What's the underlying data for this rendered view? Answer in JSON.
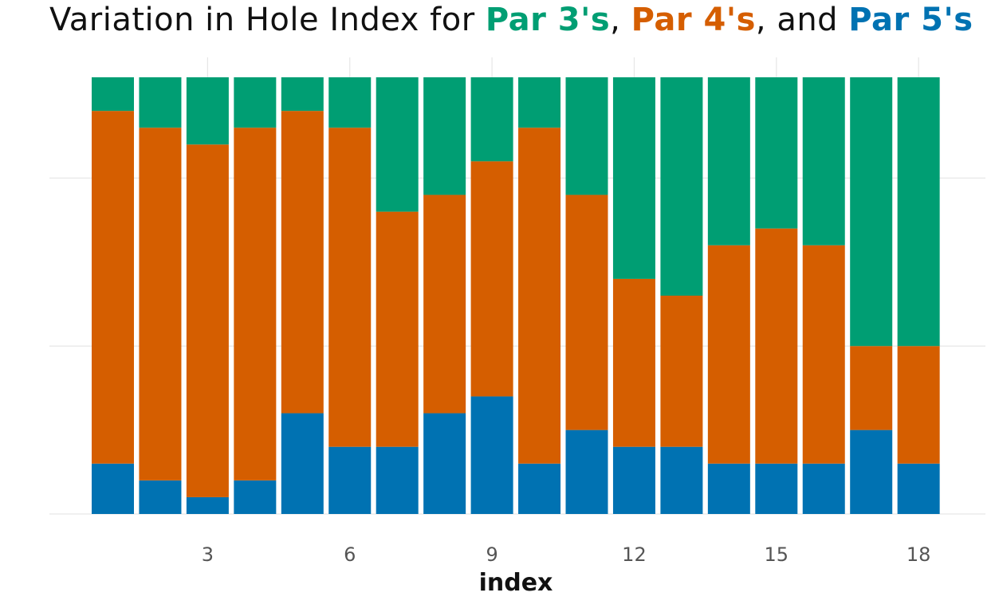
{
  "chart_data": {
    "type": "bar",
    "stacked": true,
    "title": {
      "prefix": "Variation in Hole Index for ",
      "par3": "Par 3's",
      "sep1": ", ",
      "par4": "Par 4's",
      "sep2": ", and ",
      "par5": "Par 5's"
    },
    "xlabel": "index",
    "ylabel": "",
    "ylim": [
      0,
      26
    ],
    "grid": true,
    "legend": "none",
    "x_ticks": [
      3,
      6,
      9,
      12,
      15,
      18
    ],
    "categories": [
      1,
      2,
      3,
      4,
      5,
      6,
      7,
      8,
      9,
      10,
      11,
      12,
      13,
      14,
      15,
      16,
      17,
      18
    ],
    "series": [
      {
        "key": "par5",
        "color": "#0072B2",
        "values": [
          3,
          2,
          1,
          2,
          6,
          4,
          4,
          6,
          7,
          3,
          5,
          4,
          4,
          3,
          3,
          3,
          5,
          3
        ]
      },
      {
        "key": "par4",
        "color": "#D55E00",
        "values": [
          21,
          21,
          21,
          21,
          18,
          19,
          14,
          13,
          14,
          20,
          14,
          10,
          9,
          13,
          14,
          13,
          5,
          7
        ]
      },
      {
        "key": "par3",
        "color": "#009E73",
        "values": [
          2,
          3,
          4,
          3,
          2,
          3,
          8,
          7,
          5,
          3,
          7,
          12,
          13,
          10,
          9,
          10,
          16,
          16
        ]
      }
    ]
  }
}
